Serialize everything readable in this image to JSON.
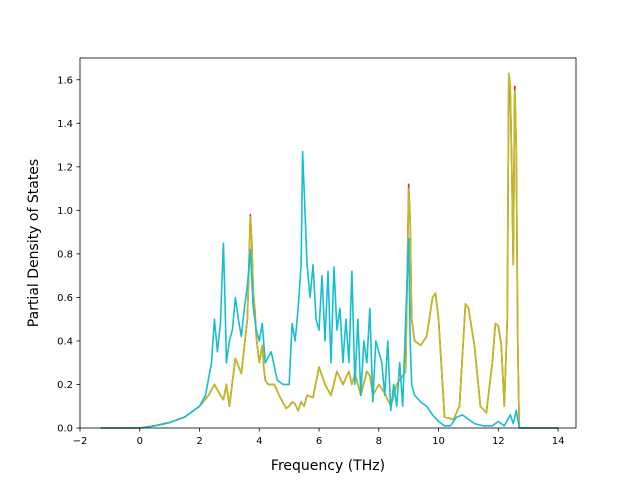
{
  "chart_data": {
    "type": "line",
    "title": "",
    "xlabel": "Frequency (THz)",
    "ylabel": "Partial Density of States",
    "xlim": [
      -2,
      14.6
    ],
    "ylim": [
      0,
      1.7
    ],
    "xticks": [
      -2,
      0,
      2,
      4,
      6,
      8,
      10,
      12,
      14
    ],
    "yticks": [
      0.0,
      0.2,
      0.4,
      0.6,
      0.8,
      1.0,
      1.2,
      1.4,
      1.6
    ],
    "xtick_labels": [
      "−2",
      "0",
      "2",
      "4",
      "6",
      "8",
      "10",
      "12",
      "14"
    ],
    "ytick_labels": [
      "0.0",
      "0.2",
      "0.4",
      "0.6",
      "0.8",
      "1.0",
      "1.2",
      "1.4",
      "1.6"
    ],
    "grid": false,
    "legend": "none",
    "series": [
      {
        "color": "#d62728",
        "x": [
          -1.3,
          0,
          0.5,
          1.0,
          1.5,
          1.8,
          2.0,
          2.3,
          2.5,
          2.7,
          2.8,
          2.9,
          3.0,
          3.2,
          3.4,
          3.6,
          3.65,
          3.7,
          3.75,
          3.8,
          3.85,
          3.9,
          4.0,
          4.1,
          4.15,
          4.2,
          4.3,
          4.5,
          4.7,
          4.9,
          5.0,
          5.1,
          5.2,
          5.3,
          5.4,
          5.5,
          5.6,
          5.8,
          6.0,
          6.2,
          6.4,
          6.6,
          6.8,
          7.0,
          7.1,
          7.2,
          7.4,
          7.6,
          7.7,
          7.8,
          8.0,
          8.2,
          8.4,
          8.6,
          8.8,
          8.9,
          9.0,
          9.05,
          9.1,
          9.2,
          9.4,
          9.6,
          9.8,
          9.9,
          10.0,
          10.2,
          10.5,
          10.7,
          10.9,
          11.0,
          11.2,
          11.4,
          11.6,
          11.8,
          11.9,
          12.0,
          12.1,
          12.2,
          12.3,
          12.35,
          12.4,
          12.45,
          12.5,
          12.55,
          12.6,
          12.65,
          12.7,
          14.0
        ],
        "y": [
          0,
          0,
          0.01,
          0.025,
          0.05,
          0.08,
          0.1,
          0.15,
          0.2,
          0.15,
          0.13,
          0.2,
          0.1,
          0.32,
          0.25,
          0.5,
          0.72,
          0.98,
          0.85,
          0.62,
          0.55,
          0.42,
          0.3,
          0.38,
          0.28,
          0.22,
          0.2,
          0.2,
          0.14,
          0.09,
          0.1,
          0.12,
          0.11,
          0.08,
          0.12,
          0.1,
          0.15,
          0.14,
          0.28,
          0.2,
          0.15,
          0.26,
          0.2,
          0.26,
          0.2,
          0.25,
          0.15,
          0.26,
          0.24,
          0.15,
          0.2,
          0.16,
          0.1,
          0.2,
          0.24,
          0.26,
          1.12,
          0.95,
          0.5,
          0.4,
          0.38,
          0.42,
          0.6,
          0.62,
          0.5,
          0.05,
          0.04,
          0.1,
          0.57,
          0.55,
          0.38,
          0.1,
          0.07,
          0.3,
          0.48,
          0.47,
          0.38,
          0.1,
          0.5,
          1.6,
          1.55,
          1.2,
          0.75,
          1.57,
          1.3,
          0.4,
          0,
          0
        ]
      },
      {
        "color": "#bcbd22",
        "x": [
          -1.3,
          0,
          0.5,
          1.0,
          1.5,
          1.8,
          2.0,
          2.3,
          2.5,
          2.7,
          2.8,
          2.9,
          3.0,
          3.2,
          3.4,
          3.6,
          3.65,
          3.7,
          3.75,
          3.8,
          3.85,
          3.9,
          4.0,
          4.1,
          4.15,
          4.2,
          4.3,
          4.5,
          4.7,
          4.9,
          5.0,
          5.1,
          5.2,
          5.3,
          5.4,
          5.5,
          5.6,
          5.8,
          6.0,
          6.2,
          6.4,
          6.6,
          6.8,
          7.0,
          7.1,
          7.2,
          7.4,
          7.6,
          7.7,
          7.8,
          8.0,
          8.2,
          8.4,
          8.6,
          8.8,
          8.9,
          9.0,
          9.05,
          9.1,
          9.2,
          9.4,
          9.6,
          9.8,
          9.9,
          10.0,
          10.2,
          10.5,
          10.7,
          10.9,
          11.0,
          11.2,
          11.4,
          11.6,
          11.8,
          11.9,
          12.0,
          12.1,
          12.2,
          12.3,
          12.35,
          12.4,
          12.45,
          12.5,
          12.55,
          12.6,
          12.65,
          12.7,
          14.0
        ],
        "y": [
          0,
          0,
          0.01,
          0.025,
          0.05,
          0.08,
          0.1,
          0.15,
          0.2,
          0.15,
          0.13,
          0.2,
          0.1,
          0.32,
          0.25,
          0.5,
          0.72,
          0.97,
          0.85,
          0.62,
          0.55,
          0.42,
          0.3,
          0.38,
          0.28,
          0.22,
          0.2,
          0.2,
          0.14,
          0.09,
          0.1,
          0.12,
          0.11,
          0.08,
          0.12,
          0.1,
          0.15,
          0.14,
          0.28,
          0.2,
          0.15,
          0.26,
          0.2,
          0.26,
          0.2,
          0.25,
          0.15,
          0.26,
          0.24,
          0.15,
          0.2,
          0.16,
          0.1,
          0.2,
          0.24,
          0.26,
          1.1,
          0.95,
          0.5,
          0.4,
          0.38,
          0.42,
          0.6,
          0.62,
          0.5,
          0.05,
          0.04,
          0.1,
          0.57,
          0.55,
          0.38,
          0.1,
          0.07,
          0.3,
          0.48,
          0.47,
          0.38,
          0.1,
          0.5,
          1.63,
          1.58,
          1.2,
          0.75,
          1.55,
          1.3,
          0.4,
          0,
          0
        ]
      },
      {
        "color": "#17becf",
        "x": [
          -1.3,
          0,
          0.5,
          1.0,
          1.5,
          1.8,
          2.0,
          2.2,
          2.4,
          2.5,
          2.6,
          2.7,
          2.8,
          2.85,
          2.9,
          3.0,
          3.1,
          3.2,
          3.3,
          3.4,
          3.5,
          3.6,
          3.7,
          3.8,
          3.9,
          4.0,
          4.1,
          4.2,
          4.4,
          4.6,
          4.8,
          5.0,
          5.1,
          5.2,
          5.3,
          5.4,
          5.45,
          5.5,
          5.6,
          5.7,
          5.8,
          5.9,
          6.0,
          6.1,
          6.2,
          6.3,
          6.4,
          6.5,
          6.6,
          6.7,
          6.8,
          6.9,
          7.0,
          7.1,
          7.2,
          7.3,
          7.4,
          7.5,
          7.6,
          7.7,
          7.8,
          7.9,
          8.0,
          8.1,
          8.2,
          8.3,
          8.4,
          8.5,
          8.6,
          8.7,
          8.8,
          8.9,
          9.0,
          9.05,
          9.1,
          9.2,
          9.4,
          9.6,
          9.8,
          10.0,
          10.2,
          10.4,
          10.6,
          10.8,
          11.0,
          11.2,
          11.5,
          11.8,
          12.0,
          12.2,
          12.4,
          12.5,
          12.6,
          12.7,
          14.0
        ],
        "y": [
          0,
          0,
          0.01,
          0.025,
          0.05,
          0.08,
          0.1,
          0.15,
          0.3,
          0.5,
          0.35,
          0.48,
          0.85,
          0.6,
          0.3,
          0.4,
          0.45,
          0.6,
          0.5,
          0.42,
          0.55,
          0.65,
          0.82,
          0.55,
          0.45,
          0.4,
          0.48,
          0.3,
          0.35,
          0.22,
          0.2,
          0.2,
          0.48,
          0.4,
          0.55,
          0.75,
          1.27,
          1.1,
          0.75,
          0.6,
          0.75,
          0.5,
          0.45,
          0.7,
          0.4,
          0.72,
          0.3,
          0.74,
          0.45,
          0.55,
          0.3,
          0.5,
          0.3,
          0.72,
          0.2,
          0.5,
          0.15,
          0.4,
          0.3,
          0.55,
          0.12,
          0.4,
          0.35,
          0.3,
          0.15,
          0.4,
          0.08,
          0.2,
          0.1,
          0.3,
          0.1,
          0.5,
          0.87,
          0.4,
          0.2,
          0.15,
          0.12,
          0.1,
          0.06,
          0.03,
          0.01,
          0.01,
          0.05,
          0.06,
          0.04,
          0.02,
          0.01,
          0.01,
          0.03,
          0.01,
          0.06,
          0.02,
          0.08,
          0,
          0
        ]
      }
    ]
  }
}
